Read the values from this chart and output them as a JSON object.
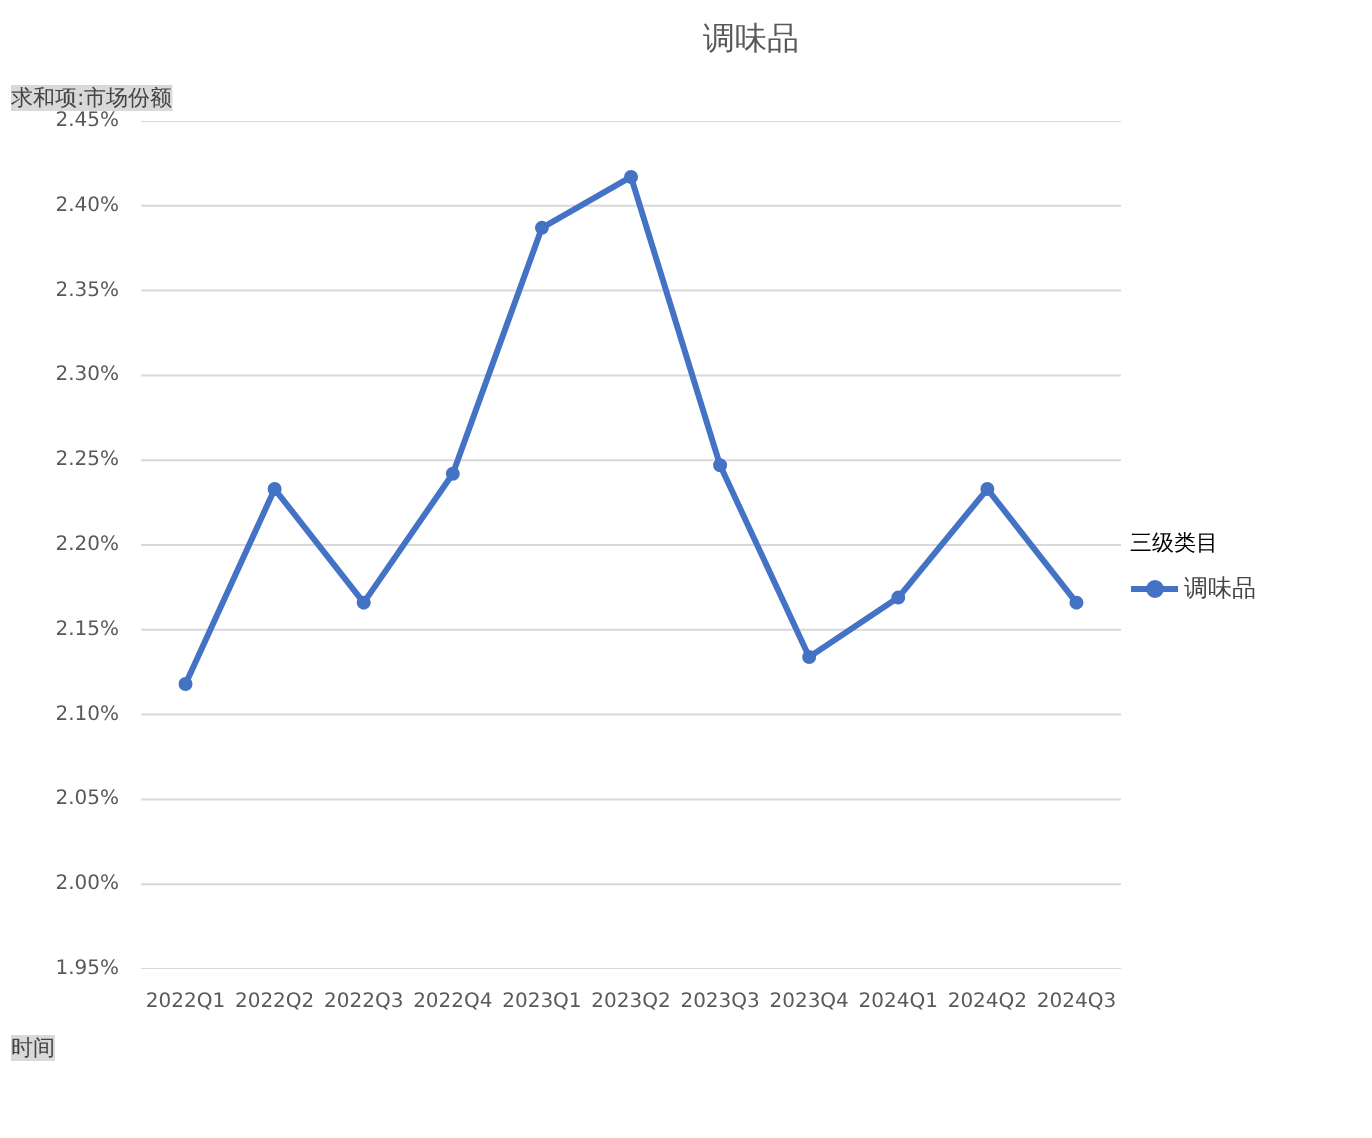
{
  "chart_data": {
    "type": "line",
    "title": "调味品",
    "xlabel": "时间",
    "legend_title": "三级类目",
    "annotations": [
      "求和项:市场份额"
    ],
    "categories": [
      "2022Q1",
      "2022Q2",
      "2022Q3",
      "2022Q4",
      "2023Q1",
      "2023Q2",
      "2023Q3",
      "2023Q4",
      "2024Q1",
      "2024Q2",
      "2024Q3"
    ],
    "series": [
      {
        "name": "调味品",
        "color": "#4472c4",
        "values": [
          2.118,
          2.233,
          2.166,
          2.242,
          2.387,
          2.417,
          2.247,
          2.134,
          2.169,
          2.233,
          2.166
        ]
      }
    ],
    "ylim": [
      1.95,
      2.45
    ],
    "yticks": [
      {
        "value": 1.95,
        "label": "1.95%"
      },
      {
        "value": 2.0,
        "label": "2.00%"
      },
      {
        "value": 2.05,
        "label": "2.05%"
      },
      {
        "value": 2.1,
        "label": "2.10%"
      },
      {
        "value": 2.15,
        "label": "2.15%"
      },
      {
        "value": 2.2,
        "label": "2.20%"
      },
      {
        "value": 2.25,
        "label": "2.25%"
      },
      {
        "value": 2.3,
        "label": "2.30%"
      },
      {
        "value": 2.35,
        "label": "2.35%"
      },
      {
        "value": 2.4,
        "label": "2.40%"
      },
      {
        "value": 2.45,
        "label": "2.45%"
      }
    ],
    "grid": "y",
    "legend": "right",
    "marker": "circle",
    "line_style": "solid"
  }
}
